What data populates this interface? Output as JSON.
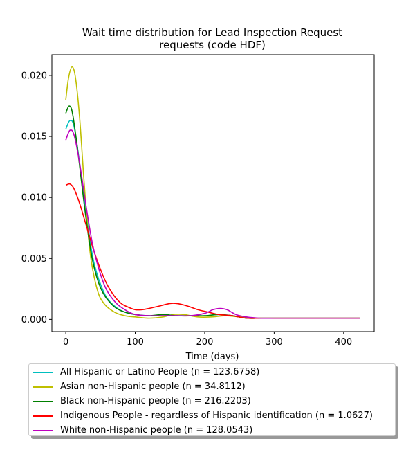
{
  "chart_data": {
    "type": "line",
    "title_line1": "Wait time distribution  for Lead Inspection Request",
    "title_line2": "requests (code HDF)",
    "xlabel": "Time (days)",
    "ylabel": "",
    "xlim": [
      -20,
      444
    ],
    "ylim": [
      -0.001,
      0.0217
    ],
    "xticks": [
      0,
      100,
      200,
      300,
      400
    ],
    "xtick_labels": [
      "0",
      "100",
      "200",
      "300",
      "400"
    ],
    "yticks": [
      0.0,
      0.005,
      0.01,
      0.015,
      0.02
    ],
    "ytick_labels": [
      "0.000",
      "0.005",
      "0.010",
      "0.015",
      "0.020"
    ],
    "grid": false,
    "legend_position": "below",
    "series": [
      {
        "name": "All Hispanic or Latino People (n = 123.6758)",
        "color": "#00bfbf",
        "x": [
          0,
          6,
          12,
          20,
          30,
          40,
          55,
          70,
          85,
          100,
          120,
          140,
          160,
          180,
          200,
          220,
          240,
          260,
          280,
          300,
          330,
          360,
          390,
          423
        ],
        "y": [
          0.0156,
          0.0163,
          0.0158,
          0.0128,
          0.0085,
          0.0048,
          0.0022,
          0.0011,
          0.0006,
          0.0004,
          0.0003,
          0.0003,
          0.0003,
          0.0003,
          0.0003,
          0.0004,
          0.0003,
          0.0001,
          0.0001,
          0.0001,
          0.0001,
          0.0001,
          0.0001,
          0.0001
        ]
      },
      {
        "name": "Asian non-Hispanic people (n = 34.8112)",
        "color": "#bfbf00",
        "x": [
          0,
          4,
          9,
          14,
          20,
          27,
          35,
          45,
          55,
          70,
          85,
          100,
          120,
          140,
          155,
          170,
          190,
          210,
          230,
          250,
          270,
          300,
          330,
          360,
          390,
          423
        ],
        "y": [
          0.018,
          0.0198,
          0.0207,
          0.0198,
          0.0165,
          0.0108,
          0.0055,
          0.0025,
          0.0013,
          0.0006,
          0.0003,
          0.0002,
          0.0001,
          0.0002,
          0.0004,
          0.0004,
          0.0002,
          0.0002,
          0.0003,
          0.0002,
          0.0001,
          0.0001,
          0.0001,
          0.0001,
          0.0001,
          0.0001
        ]
      },
      {
        "name": "Black non-Hispanic people (n = 216.2203)",
        "color": "#008000",
        "x": [
          0,
          5,
          10,
          18,
          28,
          38,
          50,
          65,
          80,
          100,
          120,
          140,
          160,
          180,
          200,
          220,
          240,
          260,
          280,
          300,
          330,
          360,
          390,
          423
        ],
        "y": [
          0.0169,
          0.0175,
          0.0168,
          0.0135,
          0.0088,
          0.005,
          0.0026,
          0.0013,
          0.0007,
          0.0004,
          0.0003,
          0.0004,
          0.0003,
          0.0003,
          0.0003,
          0.0004,
          0.0003,
          0.0001,
          0.0001,
          0.0001,
          0.0001,
          0.0001,
          0.0001,
          0.0001
        ]
      },
      {
        "name": "Indigenous People - regardless of Hispanic identification (n = 1.0627)",
        "color": "#ff0000",
        "x": [
          0,
          6,
          12,
          20,
          30,
          40,
          50,
          60,
          70,
          80,
          90,
          100,
          110,
          120,
          135,
          150,
          160,
          175,
          190,
          205,
          220,
          240,
          260,
          280,
          300,
          330,
          360,
          390,
          423
        ],
        "y": [
          0.011,
          0.0111,
          0.0107,
          0.0095,
          0.0076,
          0.0057,
          0.0041,
          0.0028,
          0.0019,
          0.0013,
          0.001,
          0.0008,
          0.0008,
          0.0009,
          0.0011,
          0.0013,
          0.0013,
          0.0011,
          0.0008,
          0.0006,
          0.0004,
          0.0003,
          0.0001,
          0.0001,
          0.0001,
          0.0001,
          0.0001,
          0.0001,
          0.0001
        ]
      },
      {
        "name": "White non-Hispanic people (n = 128.0543)",
        "color": "#bf00bf",
        "x": [
          0,
          6,
          12,
          20,
          30,
          40,
          55,
          70,
          85,
          100,
          120,
          140,
          160,
          180,
          200,
          212,
          222,
          232,
          245,
          260,
          280,
          300,
          330,
          360,
          390,
          423
        ],
        "y": [
          0.0147,
          0.0155,
          0.0151,
          0.0128,
          0.009,
          0.0058,
          0.0029,
          0.0015,
          0.0008,
          0.0004,
          0.0003,
          0.0003,
          0.0003,
          0.0003,
          0.0005,
          0.0008,
          0.0009,
          0.0008,
          0.0004,
          0.0002,
          0.0001,
          0.0001,
          0.0001,
          0.0001,
          0.0001,
          0.0001
        ]
      }
    ]
  }
}
